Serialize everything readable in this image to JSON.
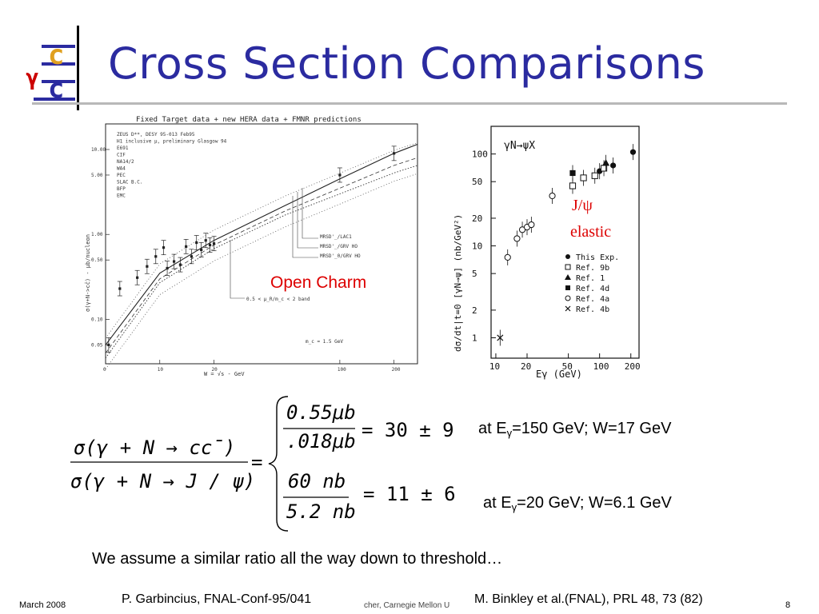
{
  "slide": {
    "title": "Cross Section Comparisons",
    "logo": {
      "top_letter": "c",
      "gamma": "γ",
      "bottom_letter": "c"
    }
  },
  "figure_left": {
    "header": "Fixed Target data + new HERA data + FMNR predictions",
    "legend": [
      "ZEUS D**, DESY 95-013 Feb95",
      "H1 inclusive μ, preliminary Glasgow 94",
      "E691",
      "CIF",
      "NA14/2",
      "WA4",
      "PEC",
      "SLAC B.C.",
      "BFP",
      "EMC"
    ],
    "curve_labels": [
      "MRSD'_/LAC1",
      "MRSD'_/GRV HO",
      "MRSD'_0/GRV HO"
    ],
    "band_label": "0.5 < μ_R/m_c < 2 band",
    "mass_label": "m_c = 1.5 GeV",
    "annotation": "Open Charm",
    "ylabel": "σ(γ+N->cc̄)  -  μb/nucleon",
    "xlabel": "W  =  √s  -  GeV",
    "y_ticks": [
      "10.00",
      "5.00",
      "1.00",
      "0.50",
      "0.10",
      "0.05"
    ],
    "x_ticks": [
      "0",
      "10",
      "20",
      "100",
      "200"
    ]
  },
  "figure_right": {
    "reaction": "γN→ψX",
    "annotation_top": "J/ψ",
    "annotation_bottom": "elastic",
    "ylabel": "dσ/dt|t=0 [γN→ψ] (nb/GeV²)",
    "xlabel": "Eγ (GeV)",
    "y_ticks": [
      "100",
      "50",
      "20",
      "10",
      "5",
      "2",
      "1"
    ],
    "x_ticks": [
      "10",
      "20",
      "50",
      "100",
      "200"
    ],
    "legend": [
      {
        "marker": "filled-circle",
        "label": "This Exp."
      },
      {
        "marker": "open-square",
        "label": "Ref. 9b"
      },
      {
        "marker": "filled-triangle",
        "label": "Ref. 1"
      },
      {
        "marker": "filled-square",
        "label": "Ref. 4d"
      },
      {
        "marker": "open-circle",
        "label": "Ref. 4a"
      },
      {
        "marker": "cross",
        "label": "Ref. 4b"
      }
    ]
  },
  "equation": {
    "numerator": "σ(γ + N → cc̄)",
    "denominator": "σ(γ + N → J / ψ)",
    "eq": "=",
    "case1_top": "0.55μb",
    "case1_bottom": ".018μb",
    "case1_result": "= 30 ± 9",
    "case2_top": "60 nb",
    "case2_bottom": "5.2 nb",
    "case2_result": "= 11 ± 6"
  },
  "conditions": [
    {
      "prefix": "at E",
      "sub": "γ",
      "rest": "=150 GeV; W=17 GeV"
    },
    {
      "prefix": "at E",
      "sub": "γ",
      "rest": "=20 GeV; W=6.1 GeV"
    }
  ],
  "statement": "We assume a similar ratio all the way down to threshold…",
  "footer": {
    "date": "March  2008",
    "ref_left": "P. Garbincius, FNAL-Conf-95/041",
    "author_fragment": "cher, Carnegie Mellon U",
    "ref_right": "M. Binkley et al.(FNAL), PRL 48, 73 (82)",
    "page": "8"
  },
  "chart_data": [
    {
      "type": "scatter",
      "title": "Fixed Target data + new HERA data + FMNR predictions",
      "xlabel": "W = √s - GeV",
      "ylabel": "σ(γ+N->cc̄) - μb/nucleon",
      "x_scale": "log",
      "y_scale": "log",
      "xlim": [
        5,
        270
      ],
      "ylim": [
        0.03,
        20
      ],
      "points": [
        {
          "x": 5.2,
          "y": 0.05
        },
        {
          "x": 6.0,
          "y": 0.23
        },
        {
          "x": 7.5,
          "y": 0.31
        },
        {
          "x": 8.5,
          "y": 0.42
        },
        {
          "x": 9.5,
          "y": 0.55
        },
        {
          "x": 10.5,
          "y": 0.7
        },
        {
          "x": 11.0,
          "y": 0.4
        },
        {
          "x": 12.0,
          "y": 0.48
        },
        {
          "x": 13.0,
          "y": 0.44
        },
        {
          "x": 14.0,
          "y": 0.72
        },
        {
          "x": 15.0,
          "y": 0.55
        },
        {
          "x": 16.0,
          "y": 0.8
        },
        {
          "x": 17.0,
          "y": 0.66
        },
        {
          "x": 18.0,
          "y": 0.85
        },
        {
          "x": 19.0,
          "y": 0.75
        },
        {
          "x": 20.0,
          "y": 0.78
        },
        {
          "x": 100,
          "y": 5.0
        },
        {
          "x": 200,
          "y": 9.0
        }
      ],
      "curves": [
        {
          "name": "MRSD'_/LAC1",
          "x": [
            5,
            10,
            20,
            50,
            100,
            200,
            270
          ],
          "y": [
            0.05,
            0.35,
            0.85,
            2.2,
            4.5,
            9.0,
            11.5
          ]
        },
        {
          "name": "MRSD'_/GRV HO",
          "x": [
            5,
            10,
            20,
            50,
            100,
            200,
            270
          ],
          "y": [
            0.04,
            0.3,
            0.75,
            1.9,
            3.5,
            6.5,
            8.0
          ]
        },
        {
          "name": "MRSD'_0/GRV HO",
          "x": [
            5,
            10,
            20,
            50,
            100,
            200,
            270
          ],
          "y": [
            0.035,
            0.27,
            0.68,
            1.7,
            3.0,
            5.3,
            6.5
          ]
        }
      ]
    },
    {
      "type": "scatter",
      "title": "γN→ψX",
      "xlabel": "Eγ (GeV)",
      "ylabel": "dσ/dt|t=0 [γN→ψ] (nb/GeV²)",
      "x_scale": "log",
      "y_scale": "log",
      "xlim": [
        9,
        240
      ],
      "ylim": [
        0.6,
        200
      ],
      "series": [
        {
          "name": "This Exp.",
          "marker": "filled-circle",
          "x": [
            100,
            135,
            210
          ],
          "y": [
            65,
            75,
            105
          ]
        },
        {
          "name": "Ref. 9b",
          "marker": "open-square",
          "x": [
            55,
            70,
            90,
            110
          ],
          "y": [
            45,
            55,
            58,
            70
          ]
        },
        {
          "name": "Ref. 1",
          "marker": "filled-triangle",
          "x": [
            115
          ],
          "y": [
            80
          ]
        },
        {
          "name": "Ref. 4d",
          "marker": "filled-square",
          "x": [
            55
          ],
          "y": [
            62
          ]
        },
        {
          "name": "Ref. 4a",
          "marker": "open-circle",
          "x": [
            13,
            16,
            18,
            20,
            22,
            35
          ],
          "y": [
            7.5,
            12,
            15,
            16,
            17,
            35
          ]
        },
        {
          "name": "Ref. 4b",
          "marker": "cross",
          "x": [
            11
          ],
          "y": [
            1.0
          ]
        }
      ]
    }
  ]
}
